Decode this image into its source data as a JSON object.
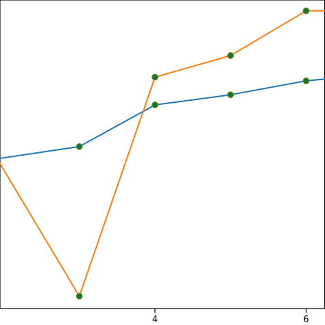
{
  "chart_data": {
    "type": "line",
    "xlim": [
      1.95,
      6.25
    ],
    "ylim": [
      0.0,
      1.0
    ],
    "x_ticks": [
      {
        "value": 4,
        "label": "4"
      },
      {
        "value": 6,
        "label": "6"
      }
    ],
    "grid": false,
    "marker": {
      "face_color": "#007a3d",
      "edge_color": "#7a7a00"
    },
    "series": [
      {
        "color": "#1f77b4",
        "x": [
          1.9,
          3,
          4,
          5,
          6,
          6.3
        ],
        "y": [
          0.485,
          0.525,
          0.66,
          0.693,
          0.738,
          0.745
        ]
      },
      {
        "color": "#ff7f0e",
        "x": [
          1.9,
          3,
          4,
          5,
          6,
          6.3
        ],
        "y": [
          0.49,
          0.04,
          0.75,
          0.82,
          0.965,
          0.965
        ]
      }
    ]
  }
}
